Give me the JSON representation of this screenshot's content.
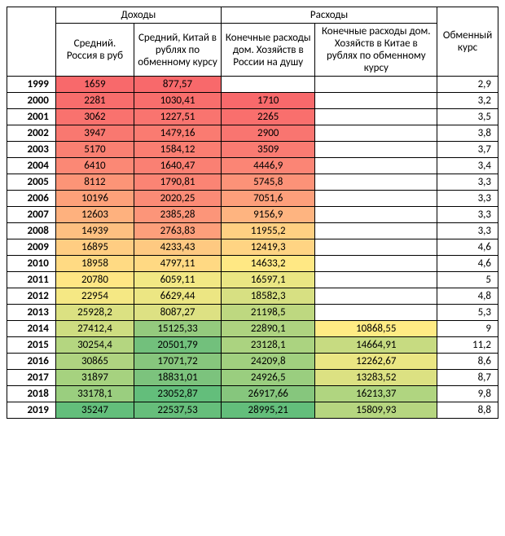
{
  "headers": {
    "group1": "Доходы",
    "group2": "Расходы",
    "col1": "Средний. Россия в руб",
    "col2": "Средний, Китай в рублях по обменному курсу",
    "col3": "Конечные расходы дом. Хозяйств в России на душу",
    "col4": "Конечные расходы дом. Хозяйств в Китае в рублях по обменному курсу",
    "col5": "Обменный курс"
  },
  "colors": {
    "border": "#000000",
    "bg": "#ffffff"
  },
  "rows": [
    {
      "year": "1999",
      "c1": {
        "v": "1659",
        "bg": "#f8696b"
      },
      "c2": {
        "v": "877,57",
        "bg": "#f8696b"
      },
      "c3": {
        "v": "",
        "bg": "#ffffff"
      },
      "c4": {
        "v": "",
        "bg": "#ffffff"
      },
      "c5": "2,9"
    },
    {
      "year": "2000",
      "c1": {
        "v": "2281",
        "bg": "#f86d6c"
      },
      "c2": {
        "v": "1030,41",
        "bg": "#f86e6c"
      },
      "c3": {
        "v": "1710",
        "bg": "#f8696b"
      },
      "c4": {
        "v": "",
        "bg": "#ffffff"
      },
      "c5": "3,2"
    },
    {
      "year": "2001",
      "c1": {
        "v": "3062",
        "bg": "#f9726e"
      },
      "c2": {
        "v": "1227,51",
        "bg": "#f9746f"
      },
      "c3": {
        "v": "2265",
        "bg": "#f96f6d"
      },
      "c4": {
        "v": "",
        "bg": "#ffffff"
      },
      "c5": "3,5"
    },
    {
      "year": "2002",
      "c1": {
        "v": "3947",
        "bg": "#f97870"
      },
      "c2": {
        "v": "1479,16",
        "bg": "#fa7b71"
      },
      "c3": {
        "v": "2900",
        "bg": "#f97570"
      },
      "c4": {
        "v": "",
        "bg": "#ffffff"
      },
      "c5": "3,8"
    },
    {
      "year": "2003",
      "c1": {
        "v": "5170",
        "bg": "#fa8072"
      },
      "c2": {
        "v": "1584,12",
        "bg": "#fa7e72"
      },
      "c3": {
        "v": "3509",
        "bg": "#fa7b72"
      },
      "c4": {
        "v": "",
        "bg": "#ffffff"
      },
      "c5": "3,7"
    },
    {
      "year": "2004",
      "c1": {
        "v": "6410",
        "bg": "#fb8875"
      },
      "c2": {
        "v": "1640,47",
        "bg": "#fa8073"
      },
      "c3": {
        "v": "4446,9",
        "bg": "#fb8575"
      },
      "c4": {
        "v": "",
        "bg": "#ffffff"
      },
      "c5": "3,4"
    },
    {
      "year": "2005",
      "c1": {
        "v": "8112",
        "bg": "#fc9477"
      },
      "c2": {
        "v": "1790,81",
        "bg": "#fb8474"
      },
      "c3": {
        "v": "5745,8",
        "bg": "#fc9278"
      },
      "c4": {
        "v": "",
        "bg": "#ffffff"
      },
      "c5": "3,3"
    },
    {
      "year": "2006",
      "c1": {
        "v": "10196",
        "bg": "#fda17a"
      },
      "c2": {
        "v": "2020,25",
        "bg": "#fb8b76"
      },
      "c3": {
        "v": "7051,6",
        "bg": "#fd9f7b"
      },
      "c4": {
        "v": "",
        "bg": "#ffffff"
      },
      "c5": "3,3"
    },
    {
      "year": "2007",
      "c1": {
        "v": "12603",
        "bg": "#feb17e"
      },
      "c2": {
        "v": "2385,28",
        "bg": "#fc9579"
      },
      "c3": {
        "v": "9156,9",
        "bg": "#feb480"
      },
      "c4": {
        "v": "",
        "bg": "#ffffff"
      },
      "c5": "3,3"
    },
    {
      "year": "2008",
      "c1": {
        "v": "14939",
        "bg": "#fec081"
      },
      "c2": {
        "v": "2763,83",
        "bg": "#fd9f7b"
      },
      "c3": {
        "v": "11955,2",
        "bg": "#ffd082"
      },
      "c4": {
        "v": "",
        "bg": "#ffffff"
      },
      "c5": "3,3"
    },
    {
      "year": "2009",
      "c1": {
        "v": "16895",
        "bg": "#ffcd82"
      },
      "c2": {
        "v": "4233,43",
        "bg": "#fec981"
      },
      "c3": {
        "v": "12419,3",
        "bg": "#ffd483"
      },
      "c4": {
        "v": "",
        "bg": "#ffffff"
      },
      "c5": "4,6"
    },
    {
      "year": "2010",
      "c1": {
        "v": "18958",
        "bg": "#ffda83"
      },
      "c2": {
        "v": "4797,11",
        "bg": "#ffd983"
      },
      "c3": {
        "v": "14633,2",
        "bg": "#ffe884"
      },
      "c4": {
        "v": "",
        "bg": "#ffffff"
      },
      "c5": "4,6"
    },
    {
      "year": "2011",
      "c1": {
        "v": "20780",
        "bg": "#ffe684"
      },
      "c2": {
        "v": "6059,11",
        "bg": "#f2e884"
      },
      "c3": {
        "v": "16597,1",
        "bg": "#eae683"
      },
      "c4": {
        "v": "",
        "bg": "#ffffff"
      },
      "c5": "5"
    },
    {
      "year": "2012",
      "c1": {
        "v": "22954",
        "bg": "#f5e884"
      },
      "c2": {
        "v": "6629,44",
        "bg": "#ece683"
      },
      "c3": {
        "v": "18582,3",
        "bg": "#d7e082"
      },
      "c4": {
        "v": "",
        "bg": "#ffffff"
      },
      "c5": "4,8"
    },
    {
      "year": "2013",
      "c1": {
        "v": "25928,2",
        "bg": "#dbe182"
      },
      "c2": {
        "v": "8087,27",
        "bg": "#dde183"
      },
      "c3": {
        "v": "21198,5",
        "bg": "#bed880"
      },
      "c4": {
        "v": "",
        "bg": "#ffffff"
      },
      "c5": "5,3"
    },
    {
      "year": "2014",
      "c1": {
        "v": "27412,4",
        "bg": "#cedd81"
      },
      "c2": {
        "v": "15125,33",
        "bg": "#94ca7e"
      },
      "c3": {
        "v": "22890,1",
        "bg": "#aed380"
      },
      "c4": {
        "v": "10868,55",
        "bg": "#ffeb84"
      },
      "c5": "9"
    },
    {
      "year": "2015",
      "c1": {
        "v": "30254,4",
        "bg": "#b4d680"
      },
      "c2": {
        "v": "20501,79",
        "bg": "#72c07c"
      },
      "c3": {
        "v": "23128,1",
        "bg": "#abd380"
      },
      "c4": {
        "v": "14664,91",
        "bg": "#c7db81"
      },
      "c5": "11,2"
    },
    {
      "year": "2016",
      "c1": {
        "v": "30865",
        "bg": "#afd480"
      },
      "c2": {
        "v": "17071,72",
        "bg": "#87c67d"
      },
      "c3": {
        "v": "24209,8",
        "bg": "#a1d07f"
      },
      "c4": {
        "v": "12262,67",
        "bg": "#eae683"
      },
      "c5": "8,6"
    },
    {
      "year": "2017",
      "c1": {
        "v": "31897",
        "bg": "#a6d27f"
      },
      "c2": {
        "v": "18831,01",
        "bg": "#7cc37d"
      },
      "c3": {
        "v": "24926,5",
        "bg": "#9ace7f"
      },
      "c4": {
        "v": "13283,52",
        "bg": "#dce182"
      },
      "c5": "8,7"
    },
    {
      "year": "2018",
      "c1": {
        "v": "33178,1",
        "bg": "#9ace7f"
      },
      "c2": {
        "v": "23052,87",
        "bg": "#63be7b"
      },
      "c3": {
        "v": "26917,66",
        "bg": "#86c67d"
      },
      "c4": {
        "v": "16213,37",
        "bg": "#b0d580"
      },
      "c5": "9,8"
    },
    {
      "year": "2019",
      "c1": {
        "v": "35247",
        "bg": "#63be7b"
      },
      "c2": {
        "v": "22537,53",
        "bg": "#66be7b"
      },
      "c3": {
        "v": "28995,21",
        "bg": "#63be7b"
      },
      "c4": {
        "v": "15809,93",
        "bg": "#b6d680"
      },
      "c5": "8,8"
    }
  ]
}
